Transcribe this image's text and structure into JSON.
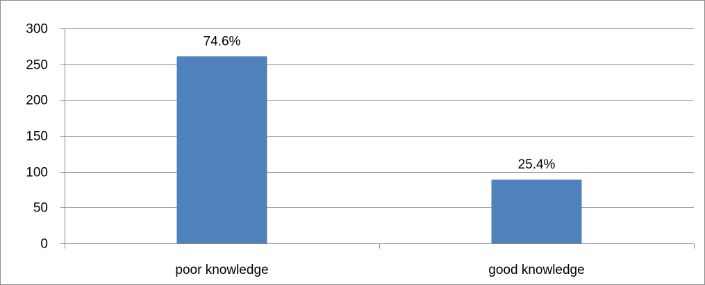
{
  "chart_data": {
    "type": "bar",
    "title": "",
    "xlabel": "",
    "ylabel": "",
    "categories": [
      "poor knowledge",
      "good knowledge"
    ],
    "values": [
      261,
      89
    ],
    "data_labels": [
      "74.6%",
      "25.4%"
    ],
    "ylim": [
      0,
      300
    ],
    "yticks": [
      0,
      50,
      100,
      150,
      200,
      250,
      300
    ],
    "grid": "horizontal",
    "legend": "none",
    "bar_color": "#4F81BD",
    "grid_color": "#878787",
    "axis_color": "#878787"
  }
}
